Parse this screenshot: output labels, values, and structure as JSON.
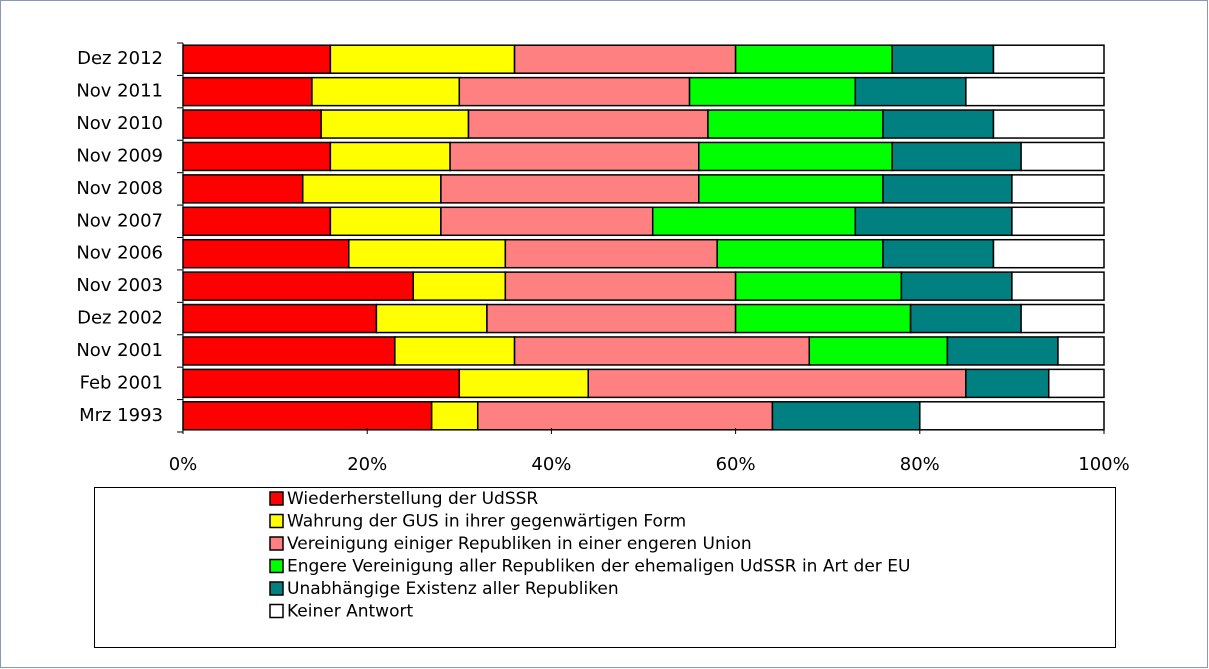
{
  "chart_data": {
    "type": "stacked-bar-horizontal",
    "categories": [
      "Dez 2012",
      "Nov 2011",
      "Nov 2010",
      "Nov 2009",
      "Nov 2008",
      "Nov 2007",
      "Nov 2006",
      "Nov 2003",
      "Dez 2002",
      "Nov 2001",
      "Feb 2001",
      "Mrz 1993"
    ],
    "series": [
      {
        "name": "Wiederherstellung der UdSSR",
        "color": "#ff0000",
        "values": [
          16,
          14,
          15,
          16,
          13,
          16,
          18,
          25,
          21,
          23,
          30,
          27
        ]
      },
      {
        "name": "Wahrung der GUS in ihrer gegenwärtigen Form",
        "color": "#ffff00",
        "values": [
          20,
          16,
          16,
          13,
          15,
          12,
          17,
          10,
          12,
          13,
          14,
          5
        ]
      },
      {
        "name": "Vereinigung einiger Republiken in einer engeren Union",
        "color": "#ff8080",
        "values": [
          24,
          25,
          26,
          27,
          28,
          23,
          23,
          25,
          27,
          32,
          41,
          32
        ]
      },
      {
        "name": "Engere Vereinigung aller Republiken der ehemaligen UdSSR in Art der EU",
        "color": "#00ff00",
        "values": [
          17,
          18,
          19,
          21,
          20,
          22,
          18,
          18,
          19,
          15,
          0,
          0
        ]
      },
      {
        "name": "Unabhängige Existenz aller Republiken",
        "color": "#008080",
        "values": [
          11,
          12,
          12,
          14,
          14,
          17,
          12,
          12,
          12,
          12,
          9,
          16
        ]
      },
      {
        "name": "Keiner Antwort",
        "color": "#ffffff",
        "values": [
          12,
          15,
          12,
          9,
          10,
          10,
          12,
          10,
          9,
          5,
          6,
          20
        ]
      }
    ],
    "xlim": [
      0,
      100
    ],
    "xticks": [
      {
        "value": 0,
        "label": "0%"
      },
      {
        "value": 20,
        "label": "20%"
      },
      {
        "value": 40,
        "label": "40%"
      },
      {
        "value": 60,
        "label": "60%"
      },
      {
        "value": 80,
        "label": "80%"
      },
      {
        "value": 100,
        "label": "100%"
      }
    ],
    "legend": "bottom"
  }
}
